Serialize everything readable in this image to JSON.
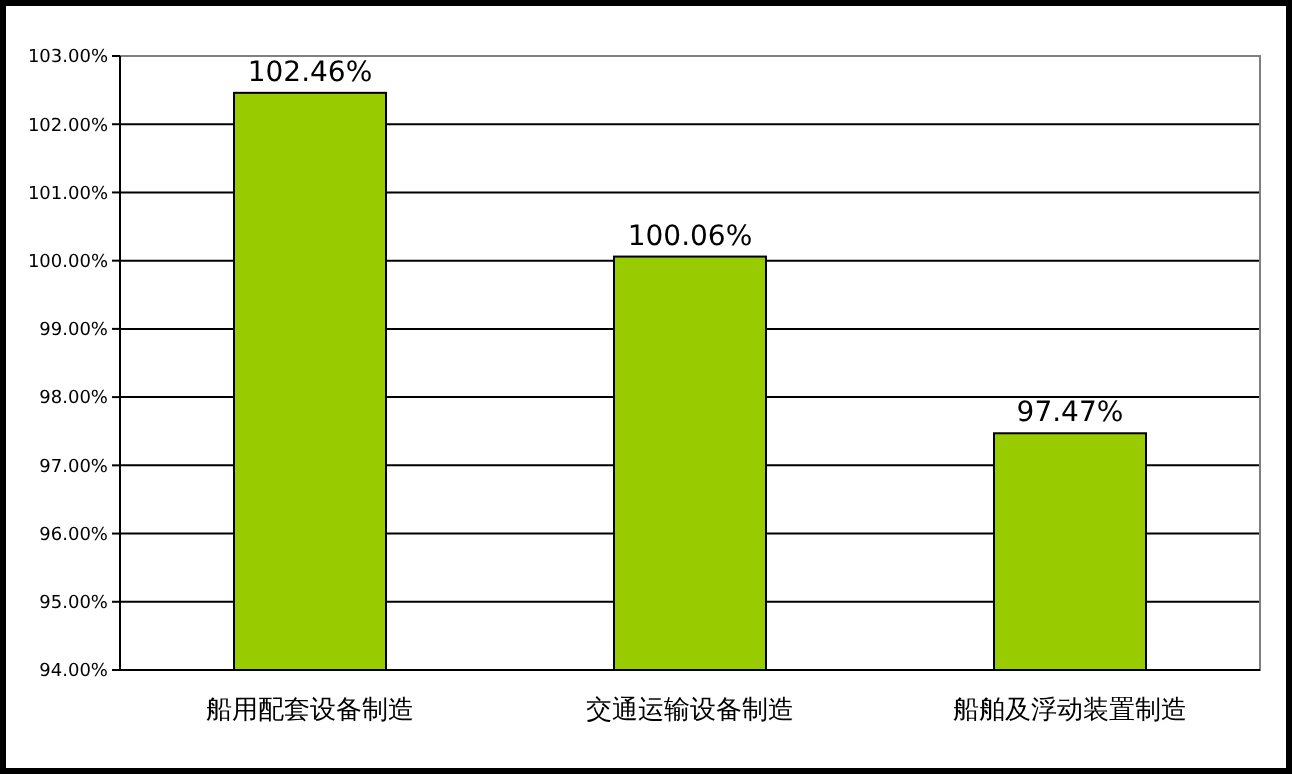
{
  "chart_data": {
    "type": "bar",
    "categories": [
      "船用配套设备制造",
      "交通运输设备制造",
      "船舶及浮动装置制造"
    ],
    "values": [
      102.46,
      100.06,
      97.47
    ],
    "color": "#99cc00",
    "value_labels": [
      "102.46%",
      "100.06%",
      "97.47%"
    ],
    "ylim": [
      94,
      103
    ],
    "yticks": [
      {
        "value": 94,
        "label": "94.00%"
      },
      {
        "value": 95,
        "label": "95.00%"
      },
      {
        "value": 96,
        "label": "96.00%"
      },
      {
        "value": 97,
        "label": "97.00%"
      },
      {
        "value": 98,
        "label": "98.00%"
      },
      {
        "value": 99,
        "label": "99.00%"
      },
      {
        "value": 100,
        "label": "100.00%"
      },
      {
        "value": 101,
        "label": "101.00%"
      },
      {
        "value": 102,
        "label": "102.00%"
      },
      {
        "value": 103,
        "label": "103.00%"
      }
    ],
    "grid": "y"
  }
}
